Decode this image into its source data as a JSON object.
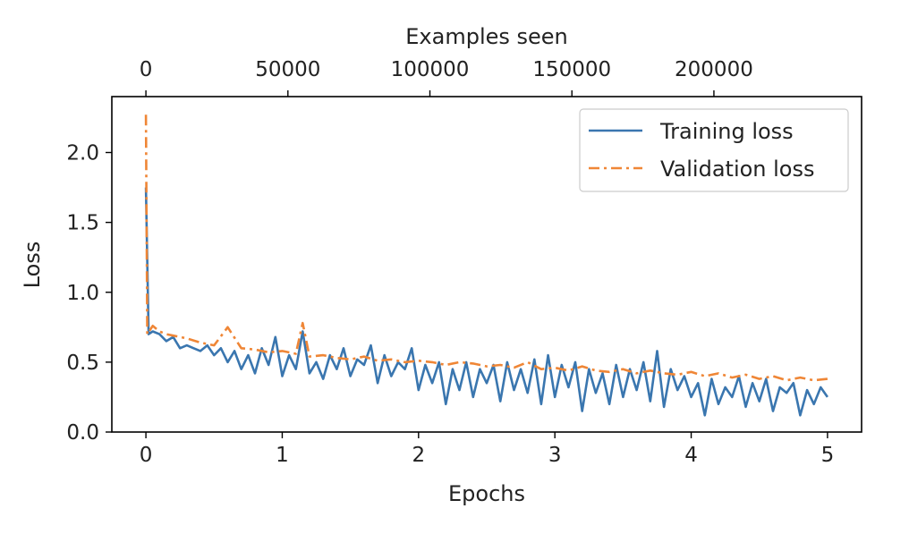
{
  "chart_data": {
    "type": "line",
    "xlabel": "Epochs",
    "ylabel": "Loss",
    "top_xlabel": "Examples seen",
    "xlim": [
      -0.25,
      5.25
    ],
    "ylim": [
      0.0,
      2.4
    ],
    "top_xlim": [
      -12000,
      252000
    ],
    "x_ticks": [
      0,
      1,
      2,
      3,
      4,
      5
    ],
    "x_tick_labels": [
      "0",
      "1",
      "2",
      "3",
      "4",
      "5"
    ],
    "y_ticks": [
      0.0,
      0.5,
      1.0,
      1.5,
      2.0
    ],
    "y_tick_labels": [
      "0.0",
      "0.5",
      "1.0",
      "1.5",
      "2.0"
    ],
    "top_x_ticks": [
      0,
      50000,
      100000,
      150000,
      200000
    ],
    "top_x_tick_labels": [
      "0",
      "50000",
      "100000",
      "150000",
      "200000"
    ],
    "grid": false,
    "legend_position": "top-right",
    "series": [
      {
        "name": "Training loss",
        "color": "#3a76af",
        "dash": "solid",
        "x": [
          0.0,
          0.02,
          0.05,
          0.1,
          0.15,
          0.2,
          0.25,
          0.3,
          0.35,
          0.4,
          0.45,
          0.5,
          0.55,
          0.6,
          0.65,
          0.7,
          0.75,
          0.8,
          0.85,
          0.9,
          0.95,
          1.0,
          1.05,
          1.1,
          1.15,
          1.2,
          1.25,
          1.3,
          1.35,
          1.4,
          1.45,
          1.5,
          1.55,
          1.6,
          1.65,
          1.7,
          1.75,
          1.8,
          1.85,
          1.9,
          1.95,
          2.0,
          2.05,
          2.1,
          2.15,
          2.2,
          2.25,
          2.3,
          2.35,
          2.4,
          2.45,
          2.5,
          2.55,
          2.6,
          2.65,
          2.7,
          2.75,
          2.8,
          2.85,
          2.9,
          2.95,
          3.0,
          3.05,
          3.1,
          3.15,
          3.2,
          3.25,
          3.3,
          3.35,
          3.4,
          3.45,
          3.5,
          3.55,
          3.6,
          3.65,
          3.7,
          3.75,
          3.8,
          3.85,
          3.9,
          3.95,
          4.0,
          4.05,
          4.1,
          4.15,
          4.2,
          4.25,
          4.3,
          4.35,
          4.4,
          4.45,
          4.5,
          4.55,
          4.6,
          4.65,
          4.7,
          4.75,
          4.8,
          4.85,
          4.9,
          4.95,
          5.0
        ],
        "y": [
          1.75,
          0.7,
          0.72,
          0.7,
          0.65,
          0.68,
          0.6,
          0.62,
          0.6,
          0.58,
          0.62,
          0.55,
          0.6,
          0.5,
          0.58,
          0.45,
          0.55,
          0.42,
          0.6,
          0.48,
          0.68,
          0.4,
          0.55,
          0.45,
          0.72,
          0.42,
          0.5,
          0.38,
          0.55,
          0.45,
          0.6,
          0.4,
          0.52,
          0.48,
          0.62,
          0.35,
          0.55,
          0.4,
          0.5,
          0.45,
          0.6,
          0.3,
          0.48,
          0.35,
          0.5,
          0.2,
          0.45,
          0.3,
          0.5,
          0.25,
          0.45,
          0.35,
          0.48,
          0.22,
          0.5,
          0.3,
          0.45,
          0.28,
          0.52,
          0.2,
          0.55,
          0.25,
          0.48,
          0.32,
          0.5,
          0.15,
          0.45,
          0.28,
          0.42,
          0.2,
          0.48,
          0.25,
          0.45,
          0.3,
          0.5,
          0.22,
          0.58,
          0.18,
          0.45,
          0.3,
          0.4,
          0.25,
          0.35,
          0.12,
          0.38,
          0.2,
          0.32,
          0.25,
          0.4,
          0.18,
          0.35,
          0.22,
          0.38,
          0.15,
          0.32,
          0.28,
          0.35,
          0.12,
          0.3,
          0.2,
          0.32,
          0.25
        ]
      },
      {
        "name": "Validation loss",
        "color": "#ef8636",
        "dash": "dashdot",
        "x": [
          0.0,
          0.01,
          0.05,
          0.1,
          0.15,
          0.2,
          0.3,
          0.4,
          0.5,
          0.6,
          0.7,
          0.8,
          0.9,
          1.0,
          1.1,
          1.15,
          1.2,
          1.3,
          1.4,
          1.5,
          1.6,
          1.7,
          1.8,
          1.9,
          2.0,
          2.1,
          2.2,
          2.3,
          2.4,
          2.5,
          2.6,
          2.7,
          2.8,
          2.9,
          3.0,
          3.1,
          3.2,
          3.3,
          3.4,
          3.5,
          3.6,
          3.7,
          3.8,
          3.9,
          4.0,
          4.1,
          4.2,
          4.3,
          4.4,
          4.5,
          4.6,
          4.7,
          4.8,
          4.9,
          5.0
        ],
        "y": [
          2.27,
          0.7,
          0.76,
          0.72,
          0.7,
          0.69,
          0.67,
          0.64,
          0.62,
          0.75,
          0.6,
          0.59,
          0.57,
          0.58,
          0.56,
          0.78,
          0.54,
          0.55,
          0.53,
          0.52,
          0.54,
          0.51,
          0.52,
          0.5,
          0.51,
          0.5,
          0.48,
          0.5,
          0.49,
          0.47,
          0.48,
          0.46,
          0.5,
          0.45,
          0.46,
          0.44,
          0.47,
          0.44,
          0.43,
          0.45,
          0.42,
          0.44,
          0.42,
          0.41,
          0.43,
          0.4,
          0.42,
          0.39,
          0.41,
          0.38,
          0.4,
          0.37,
          0.39,
          0.37,
          0.38
        ]
      }
    ]
  }
}
